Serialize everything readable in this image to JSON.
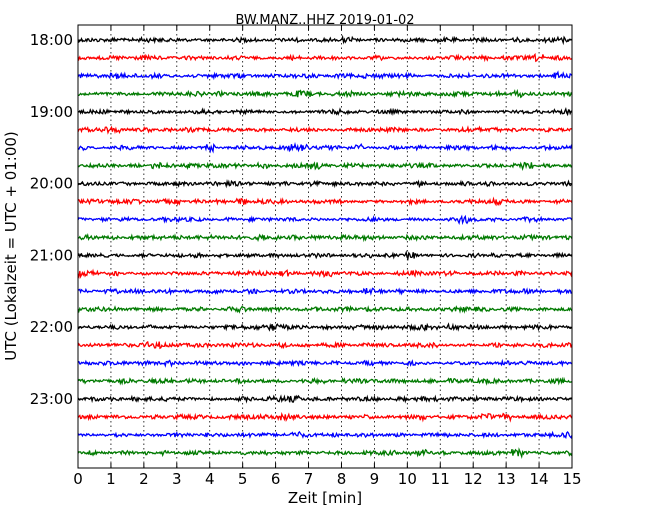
{
  "chart_data": {
    "type": "line",
    "title": "BW.MANZ..HHZ 2019-01-02",
    "xlabel": "Zeit  [min]",
    "ylabel": "UTC (Lokalzeit = UTC + 01:00)",
    "xlim": [
      0,
      15
    ],
    "x_ticks": [
      "0",
      "1",
      "2",
      "3",
      "4",
      "5",
      "6",
      "7",
      "8",
      "9",
      "10",
      "11",
      "12",
      "13",
      "14",
      "15"
    ],
    "x_gridlines": "dotted vertical at each minute",
    "y_tick_labels": [
      "18:00",
      "19:00",
      "20:00",
      "21:00",
      "22:00",
      "23:00"
    ],
    "trace_interval_minutes": 15,
    "color_cycle": [
      "#000000",
      "#ff0000",
      "#0000ff",
      "#007a00"
    ],
    "series": [
      {
        "start": "18:00",
        "color": "#000000"
      },
      {
        "start": "18:15",
        "color": "#ff0000"
      },
      {
        "start": "18:30",
        "color": "#0000ff"
      },
      {
        "start": "18:45",
        "color": "#007a00"
      },
      {
        "start": "19:00",
        "color": "#000000"
      },
      {
        "start": "19:15",
        "color": "#ff0000"
      },
      {
        "start": "19:30",
        "color": "#0000ff"
      },
      {
        "start": "19:45",
        "color": "#007a00"
      },
      {
        "start": "20:00",
        "color": "#000000"
      },
      {
        "start": "20:15",
        "color": "#ff0000"
      },
      {
        "start": "20:30",
        "color": "#0000ff"
      },
      {
        "start": "20:45",
        "color": "#007a00"
      },
      {
        "start": "21:00",
        "color": "#000000"
      },
      {
        "start": "21:15",
        "color": "#ff0000"
      },
      {
        "start": "21:30",
        "color": "#0000ff"
      },
      {
        "start": "21:45",
        "color": "#007a00"
      },
      {
        "start": "22:00",
        "color": "#000000"
      },
      {
        "start": "22:15",
        "color": "#ff0000"
      },
      {
        "start": "22:30",
        "color": "#0000ff"
      },
      {
        "start": "22:45",
        "color": "#007a00"
      },
      {
        "start": "23:00",
        "color": "#000000"
      },
      {
        "start": "23:15",
        "color": "#ff0000"
      },
      {
        "start": "23:30",
        "color": "#0000ff"
      },
      {
        "start": "23:45",
        "color": "#007a00"
      }
    ]
  }
}
